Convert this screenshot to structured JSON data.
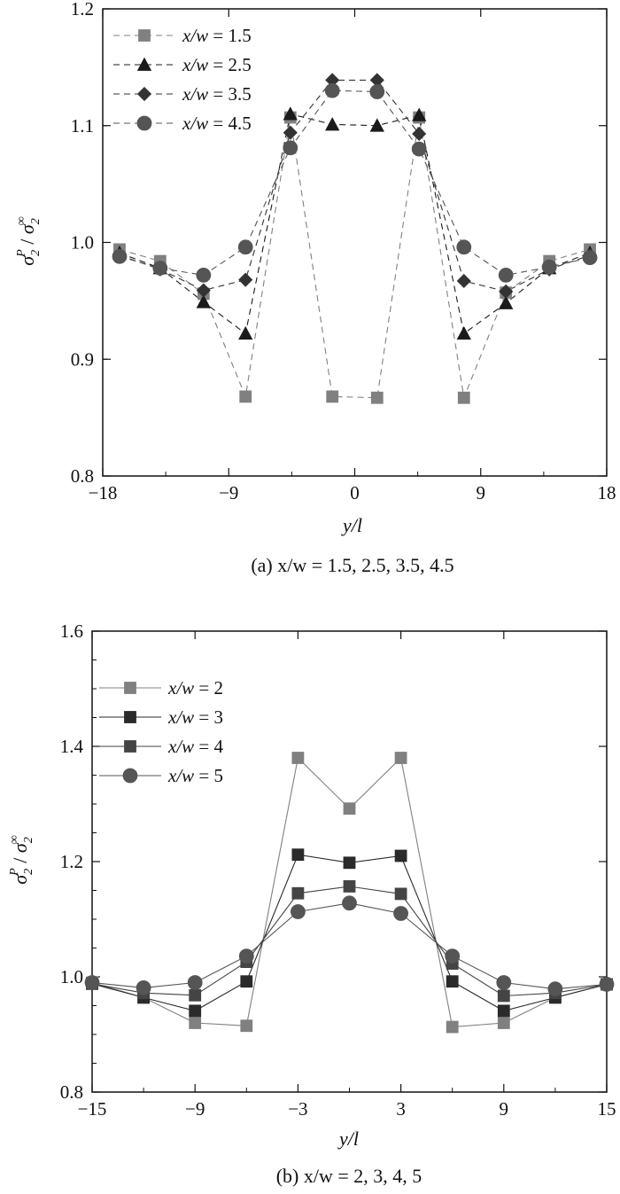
{
  "chart_data": [
    {
      "type": "line",
      "caption": "(a) x/w = 1.5, 2.5, 3.5, 4.5",
      "xlabel": "y/l",
      "ylabel": "σ2P / σ2∞",
      "xlim": [
        -18,
        18
      ],
      "ylim": [
        0.8,
        1.2
      ],
      "xticks": [
        "−18",
        "−9",
        "0",
        "9",
        "18"
      ],
      "xtick_values": [
        -18,
        -9,
        0,
        9,
        18
      ],
      "yticks": [
        "0.8",
        "0.9",
        "1.0",
        "1.1",
        "1.2"
      ],
      "ytick_values": [
        0.8,
        0.9,
        1.0,
        1.1,
        1.2
      ],
      "line_style": "dashed",
      "legend_position": "top-left",
      "x": [
        -16.8,
        -13.9,
        -10.8,
        -7.8,
        -4.6,
        -1.6,
        1.6,
        4.6,
        7.8,
        10.8,
        13.9,
        16.8
      ],
      "series": [
        {
          "name": "x/w = 1.5",
          "marker": "square",
          "color": "#808080",
          "values": [
            0.994,
            0.984,
            0.956,
            0.868,
            1.107,
            0.868,
            0.867,
            1.107,
            0.867,
            0.957,
            0.984,
            0.994
          ]
        },
        {
          "name": "x/w = 2.5",
          "marker": "triangle",
          "color": "#1a1a1a",
          "values": [
            0.991,
            0.978,
            0.949,
            0.922,
            1.11,
            1.101,
            1.1,
            1.109,
            0.922,
            0.948,
            0.978,
            0.991
          ]
        },
        {
          "name": "x/w = 3.5",
          "marker": "diamond",
          "color": "#333333",
          "values": [
            0.989,
            0.977,
            0.959,
            0.968,
            1.094,
            1.139,
            1.139,
            1.093,
            0.967,
            0.958,
            0.977,
            0.989
          ]
        },
        {
          "name": "x/w = 4.5",
          "marker": "circle",
          "color": "#555555",
          "values": [
            0.988,
            0.978,
            0.972,
            0.996,
            1.081,
            1.13,
            1.129,
            1.08,
            0.996,
            0.972,
            0.979,
            0.987
          ]
        }
      ]
    },
    {
      "type": "line",
      "caption": "(b) x/w = 2, 3, 4, 5",
      "xlabel": "y/l",
      "ylabel": "σ2P / σ2∞",
      "xlim": [
        -15,
        15
      ],
      "ylim": [
        0.8,
        1.6
      ],
      "xticks": [
        "−15",
        "−9",
        "−3",
        "3",
        "9",
        "15"
      ],
      "xtick_values": [
        -15,
        -9,
        -3,
        3,
        9,
        15
      ],
      "yticks": [
        "0.8",
        "1.0",
        "1.2",
        "1.4",
        "1.6"
      ],
      "ytick_values": [
        0.8,
        1.0,
        1.2,
        1.4,
        1.6
      ],
      "line_style": "solid",
      "legend_position": "top-left",
      "x": [
        -15,
        -12,
        -9,
        -6,
        -3,
        0,
        3,
        6,
        9,
        12,
        15
      ],
      "series": [
        {
          "name": "x/w = 2",
          "marker": "square",
          "color": "#808080",
          "values": [
            0.99,
            0.964,
            0.92,
            0.915,
            1.38,
            1.292,
            1.38,
            0.913,
            0.92,
            0.964,
            0.987
          ]
        },
        {
          "name": "x/w = 3",
          "marker": "square",
          "color": "#2a2a2a",
          "values": [
            0.988,
            0.964,
            0.941,
            0.992,
            1.212,
            1.198,
            1.21,
            0.992,
            0.941,
            0.964,
            0.987
          ]
        },
        {
          "name": "x/w = 4",
          "marker": "square",
          "color": "#444444",
          "values": [
            0.988,
            0.972,
            0.968,
            1.026,
            1.145,
            1.157,
            1.144,
            1.023,
            0.967,
            0.972,
            0.987
          ]
        },
        {
          "name": "x/w = 5",
          "marker": "circle",
          "color": "#555555",
          "values": [
            0.99,
            0.981,
            0.99,
            1.036,
            1.113,
            1.128,
            1.11,
            1.036,
            0.99,
            0.979,
            0.987
          ]
        }
      ]
    }
  ]
}
